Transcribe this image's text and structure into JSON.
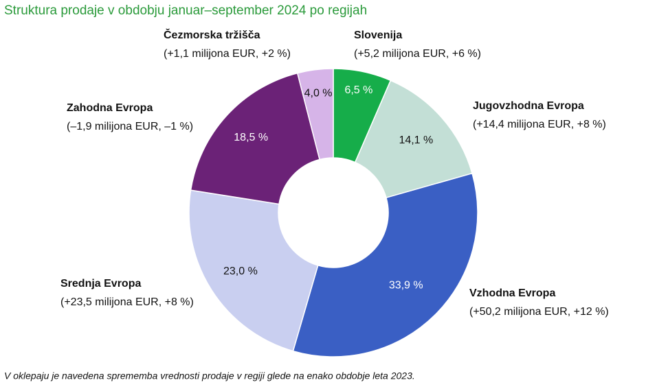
{
  "chart_data": {
    "type": "donut",
    "title": "Struktura prodaje v obdobju januar–september 2024 po regijah",
    "categories": [
      "Slovenija",
      "Jugovzhodna Evropa",
      "Vzhodna Evropa",
      "Srednja Evropa",
      "Zahodna Evropa",
      "Čezmorska tržišča"
    ],
    "notes": [
      "(+5,2 milijona EUR, +6 %)",
      "(+14,4 milijona EUR, +8 %)",
      "(+50,2 milijona EUR, +12 %)",
      "(+23,5 milijona EUR, +8 %)",
      "(–1,9 milijona EUR, –1 %)",
      "(+1,1 milijona EUR, +2 %)"
    ],
    "values": [
      6.5,
      14.1,
      33.9,
      23.0,
      18.5,
      4.0
    ],
    "value_labels": [
      "6,5 %",
      "14,1 %",
      "33,9 %",
      "23,0 %",
      "18,5 %",
      "4,0 %"
    ],
    "colors": [
      "#16ad4a",
      "#c3dfd6",
      "#3a5fc4",
      "#c9cff0",
      "#6b2277",
      "#d6b4e8"
    ],
    "footnote": "V oklepaju je navedena sprememba vrednosti prodaje v regiji glede na enako obdobje leta 2023."
  }
}
